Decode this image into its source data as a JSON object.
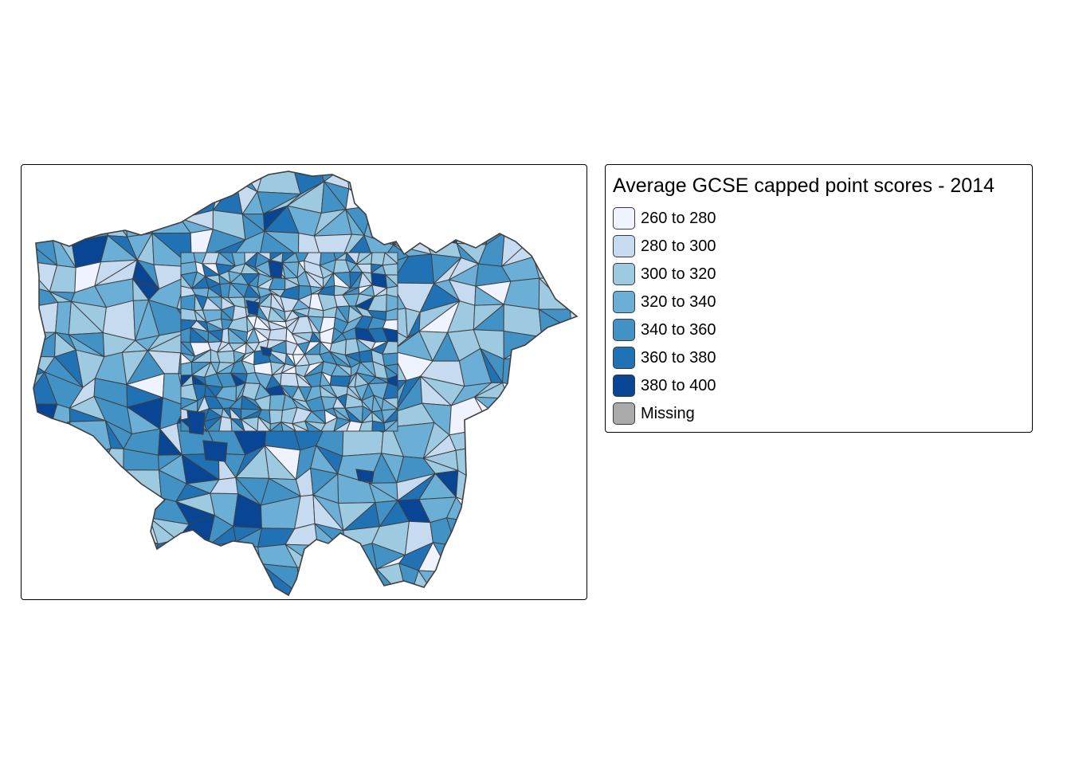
{
  "legend": {
    "title": "Average GCSE capped point scores - 2014",
    "items": [
      {
        "label": "260 to 280",
        "color": "#eff3ff"
      },
      {
        "label": "280 to 300",
        "color": "#c6dbef"
      },
      {
        "label": "300 to 320",
        "color": "#9ecae1"
      },
      {
        "label": "320 to 340",
        "color": "#6baed6"
      },
      {
        "label": "340 to 360",
        "color": "#4292c6"
      },
      {
        "label": "360 to 380",
        "color": "#2171b5"
      },
      {
        "label": "380 to 400",
        "color": "#084594"
      },
      {
        "label": "Missing",
        "color": "#aaaaaa"
      }
    ]
  },
  "map": {
    "border_color": "#404040",
    "region": "London wards"
  }
}
